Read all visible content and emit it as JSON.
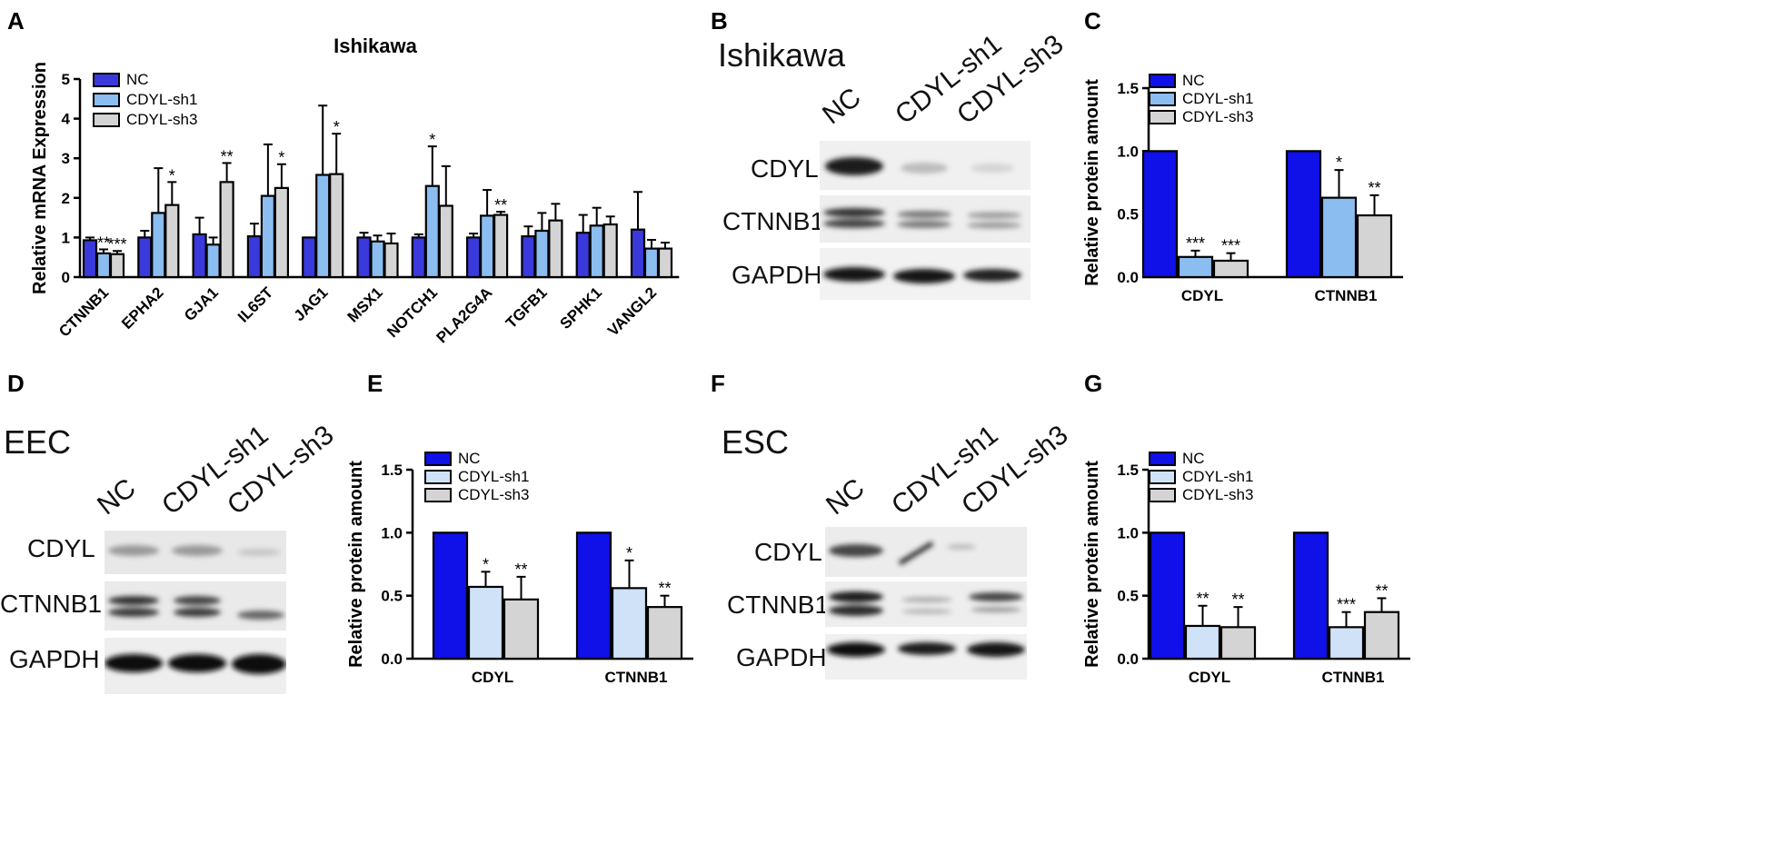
{
  "panels": {
    "A": {
      "letter": "A"
    },
    "B": {
      "letter": "B",
      "cell": "Ishikawa",
      "lanes": [
        "NC",
        "CDYL-sh1",
        "CDYL-sh3"
      ],
      "rows": [
        "CDYL",
        "CTNNB1",
        "GAPDH"
      ]
    },
    "C": {
      "letter": "C"
    },
    "D": {
      "letter": "D",
      "cell": "EEC",
      "lanes": [
        "NC",
        "CDYL-sh1",
        "CDYL-sh3"
      ],
      "rows": [
        "CDYL",
        "CTNNB1",
        "GAPDH"
      ]
    },
    "E": {
      "letter": "E"
    },
    "F": {
      "letter": "F",
      "cell": "ESC",
      "lanes": [
        "NC",
        "CDYL-sh1",
        "CDYL-sh3"
      ],
      "rows": [
        "CDYL",
        "CTNNB1",
        "GAPDH"
      ]
    },
    "G": {
      "letter": "G"
    }
  },
  "colors": {
    "nc": "#3a3adc",
    "sh1": "#8bbdf0",
    "sh3": "#d4d4d4",
    "nc_bright": "#1010e8",
    "sh1_pale": "#cfe2f7"
  },
  "chart_data": [
    {
      "id": "A",
      "type": "bar",
      "title": "Ishikawa",
      "xlabel": "",
      "ylabel": "Relative mRNA Expression",
      "ylim": [
        0,
        5
      ],
      "yticks": [
        "0",
        "1",
        "2",
        "3",
        "4",
        "5"
      ],
      "categories": [
        "CTNNB1",
        "EPHA2",
        "GJA1",
        "IL6ST",
        "JAG1",
        "MSX1",
        "NOTCH1",
        "PLA2G4A",
        "TGFB1",
        "SPHK1",
        "VANGL2"
      ],
      "series": [
        {
          "name": "NC",
          "values": [
            0.93,
            1.0,
            1.08,
            1.03,
            1.0,
            1.0,
            1.0,
            1.0,
            1.03,
            1.12,
            1.2
          ],
          "errors": [
            0.07,
            0.17,
            0.42,
            0.32,
            0.0,
            0.12,
            0.08,
            0.1,
            0.25,
            0.45,
            0.95
          ],
          "sig": [
            "",
            "",
            "",
            "",
            "",
            "",
            "",
            "",
            "",
            "",
            ""
          ]
        },
        {
          "name": "CDYL-sh1",
          "values": [
            0.6,
            1.62,
            0.82,
            2.05,
            2.58,
            0.9,
            2.3,
            1.55,
            1.17,
            1.3,
            0.72
          ],
          "errors": [
            0.1,
            1.13,
            0.18,
            1.3,
            1.75,
            0.15,
            1.0,
            0.65,
            0.45,
            0.45,
            0.22
          ],
          "sig": [
            "**",
            "",
            "",
            "",
            "",
            "",
            "*",
            "",
            "",
            "",
            ""
          ]
        },
        {
          "name": "CDYL-sh3",
          "values": [
            0.58,
            1.82,
            2.4,
            2.25,
            2.6,
            0.85,
            1.8,
            1.57,
            1.43,
            1.33,
            0.72
          ],
          "errors": [
            0.08,
            0.58,
            0.48,
            0.6,
            1.02,
            0.25,
            1.0,
            0.08,
            0.42,
            0.2,
            0.15
          ],
          "sig": [
            "***",
            "*",
            "**",
            "*",
            "*",
            "",
            "",
            "**",
            "",
            "",
            ""
          ]
        }
      ],
      "legend": "top-left"
    },
    {
      "id": "C",
      "type": "bar",
      "title": "",
      "xlabel": "",
      "ylabel": "Relative protein amount",
      "ylim": [
        0,
        1.5
      ],
      "yticks": [
        "0.0",
        "0.5",
        "1.0",
        "1.5"
      ],
      "categories": [
        "CDYL",
        "CTNNB1"
      ],
      "series": [
        {
          "name": "NC",
          "values": [
            1.0,
            1.0
          ],
          "errors": [
            0,
            0
          ],
          "sig": [
            "",
            ""
          ]
        },
        {
          "name": "CDYL-sh1",
          "values": [
            0.16,
            0.63
          ],
          "errors": [
            0.05,
            0.22
          ],
          "sig": [
            "***",
            "*"
          ]
        },
        {
          "name": "CDYL-sh3",
          "values": [
            0.13,
            0.49
          ],
          "errors": [
            0.06,
            0.16
          ],
          "sig": [
            "***",
            "**"
          ]
        }
      ],
      "legend": "top-left"
    },
    {
      "id": "E",
      "type": "bar",
      "title": "",
      "xlabel": "",
      "ylabel": "Relative protein amount",
      "ylim": [
        0,
        1.5
      ],
      "yticks": [
        "0.0",
        "0.5",
        "1.0",
        "1.5"
      ],
      "categories": [
        "CDYL",
        "CTNNB1"
      ],
      "series": [
        {
          "name": "NC",
          "values": [
            1.0,
            1.0
          ],
          "errors": [
            0,
            0
          ],
          "sig": [
            "",
            ""
          ]
        },
        {
          "name": "CDYL-sh1",
          "values": [
            0.57,
            0.56
          ],
          "errors": [
            0.12,
            0.22
          ],
          "sig": [
            "*",
            "*"
          ]
        },
        {
          "name": "CDYL-sh3",
          "values": [
            0.47,
            0.41
          ],
          "errors": [
            0.18,
            0.09
          ],
          "sig": [
            "**",
            "**"
          ]
        }
      ],
      "legend": "top-left"
    },
    {
      "id": "G",
      "type": "bar",
      "title": "",
      "xlabel": "",
      "ylabel": "Relative protein amount",
      "ylim": [
        0,
        1.5
      ],
      "yticks": [
        "0.0",
        "0.5",
        "1.0",
        "1.5"
      ],
      "categories": [
        "CDYL",
        "CTNNB1"
      ],
      "series": [
        {
          "name": "NC",
          "values": [
            1.0,
            1.0
          ],
          "errors": [
            0,
            0
          ],
          "sig": [
            "",
            ""
          ]
        },
        {
          "name": "CDYL-sh1",
          "values": [
            0.26,
            0.25
          ],
          "errors": [
            0.16,
            0.12
          ],
          "sig": [
            "**",
            "***"
          ]
        },
        {
          "name": "CDYL-sh3",
          "values": [
            0.25,
            0.37
          ],
          "errors": [
            0.16,
            0.11
          ],
          "sig": [
            "**",
            "**"
          ]
        }
      ],
      "legend": "top-left"
    }
  ]
}
